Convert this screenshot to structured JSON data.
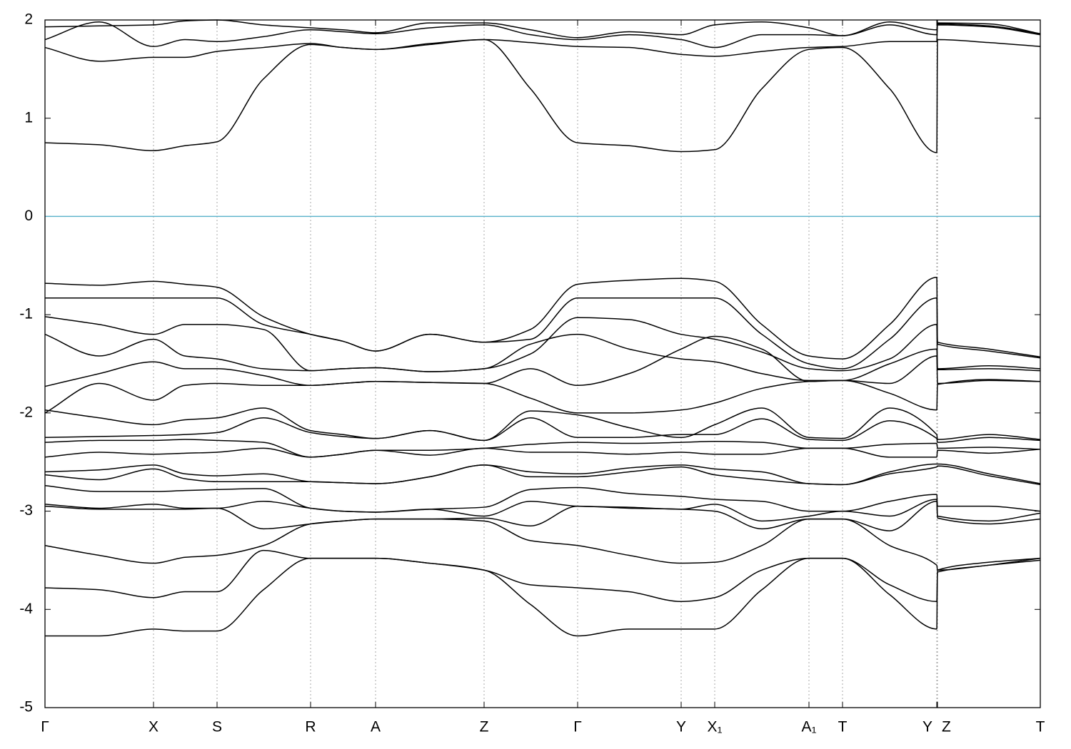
{
  "chart_data": {
    "type": "line",
    "x": [
      0,
      0.76,
      1.52,
      1.96,
      2.41,
      3.06,
      3.72,
      4.17,
      4.63,
      5.39,
      6.15,
      6.8,
      7.46,
      8.18,
      8.91,
      9.38,
      10.04,
      10.7,
      11.17,
      11.83,
      12.49,
      12.5,
      13.22,
      13.94
    ],
    "xlim": [
      0,
      13.94
    ],
    "xticks": [
      {
        "value": 0,
        "label": "Γ"
      },
      {
        "value": 1.52,
        "label": "X"
      },
      {
        "value": 2.41,
        "label": "S"
      },
      {
        "value": 3.72,
        "label": "R"
      },
      {
        "value": 4.63,
        "label": "A"
      },
      {
        "value": 6.15,
        "label": "Z"
      },
      {
        "value": 7.46,
        "label": "Γ"
      },
      {
        "value": 8.91,
        "label": "Y"
      },
      {
        "value": 9.38,
        "label": "X₁"
      },
      {
        "value": 10.7,
        "label": "A₁"
      },
      {
        "value": 11.17,
        "label": "T"
      },
      {
        "value": 12.49,
        "label": "Y"
      },
      {
        "value": 12.5,
        "label": "Z"
      },
      {
        "value": 13.94,
        "label": "T"
      }
    ],
    "ylim": [
      -5,
      2
    ],
    "yticks": [
      -5,
      -4,
      -3,
      -2,
      -1,
      0,
      1,
      2
    ],
    "vertical_grid": true,
    "line_color": "#000000",
    "hline": 0,
    "hline_color": "#5fb4cc",
    "series": [
      {
        "values": [
          0.75,
          0.73,
          0.67,
          0.72,
          0.76,
          1.4,
          1.75,
          1.72,
          1.7,
          1.75,
          1.8,
          1.3,
          0.75,
          0.72,
          0.66,
          0.68,
          1.3,
          1.7,
          1.72,
          1.3,
          0.65,
          1.8,
          1.77,
          1.73
        ]
      },
      {
        "values": [
          1.72,
          1.58,
          1.62,
          1.62,
          1.68,
          1.72,
          1.76,
          1.72,
          1.7,
          1.76,
          1.8,
          1.77,
          1.73,
          1.72,
          1.65,
          1.63,
          1.68,
          1.72,
          1.73,
          1.78,
          1.78,
          1.95,
          1.93,
          1.85
        ]
      },
      {
        "values": [
          1.8,
          1.98,
          1.73,
          1.8,
          1.78,
          1.83,
          1.9,
          1.88,
          1.86,
          1.92,
          1.95,
          1.85,
          1.8,
          1.85,
          1.8,
          1.72,
          1.85,
          1.85,
          1.84,
          1.95,
          1.85,
          1.96,
          1.94,
          1.86
        ]
      },
      {
        "values": [
          1.93,
          1.94,
          1.95,
          1.99,
          2.0,
          1.95,
          1.92,
          1.9,
          1.87,
          1.97,
          1.97,
          1.9,
          1.82,
          1.88,
          1.85,
          1.95,
          1.98,
          1.92,
          1.84,
          1.98,
          1.9,
          1.97,
          1.96,
          1.86
        ]
      },
      {
        "values": [
          -0.68,
          -0.7,
          -0.66,
          -0.69,
          -0.72,
          -1.02,
          -1.2,
          -1.27,
          -1.37,
          -1.2,
          -1.28,
          -1.15,
          -0.69,
          -0.65,
          -0.63,
          -0.66,
          -1.1,
          -1.42,
          -1.45,
          -1.1,
          -0.62,
          -1.28,
          -1.35,
          -1.43
        ]
      },
      {
        "values": [
          -0.83,
          -0.83,
          -0.83,
          -0.83,
          -0.83,
          -1.1,
          -1.2,
          -1.27,
          -1.37,
          -1.2,
          -1.28,
          -1.25,
          -0.83,
          -0.83,
          -0.83,
          -0.83,
          -1.2,
          -1.5,
          -1.55,
          -1.25,
          -0.83,
          -1.3,
          -1.37,
          -1.44
        ]
      },
      {
        "values": [
          -1.02,
          -1.1,
          -1.2,
          -1.1,
          -1.1,
          -1.15,
          -1.57,
          -1.55,
          -1.54,
          -1.58,
          -1.55,
          -1.4,
          -1.03,
          -1.05,
          -1.2,
          -1.25,
          -1.38,
          -1.55,
          -1.57,
          -1.45,
          -1.1,
          -1.55,
          -1.52,
          -1.55
        ]
      },
      {
        "values": [
          -1.2,
          -1.42,
          -1.25,
          -1.42,
          -1.45,
          -1.55,
          -1.57,
          -1.55,
          -1.54,
          -1.58,
          -1.55,
          -1.3,
          -1.2,
          -1.35,
          -1.45,
          -1.48,
          -1.6,
          -1.67,
          -1.67,
          -1.5,
          -1.35,
          -1.56,
          -1.55,
          -1.57
        ]
      },
      {
        "values": [
          -1.73,
          -1.6,
          -1.48,
          -1.55,
          -1.55,
          -1.62,
          -1.72,
          -1.7,
          -1.68,
          -1.69,
          -1.7,
          -1.55,
          -1.72,
          -1.6,
          -1.35,
          -1.22,
          -1.35,
          -1.68,
          -1.67,
          -1.7,
          -1.42,
          -1.7,
          -1.67,
          -1.68
        ]
      },
      {
        "values": [
          -2.0,
          -1.7,
          -1.87,
          -1.72,
          -1.7,
          -1.72,
          -1.72,
          -1.7,
          -1.68,
          -1.69,
          -1.7,
          -1.85,
          -2.0,
          -2.0,
          -1.97,
          -1.9,
          -1.75,
          -1.68,
          -1.67,
          -1.8,
          -1.97,
          -1.71,
          -1.66,
          -1.68
        ]
      },
      {
        "values": [
          -1.97,
          -2.05,
          -2.12,
          -2.07,
          -2.05,
          -1.95,
          -2.18,
          -2.22,
          -2.26,
          -2.18,
          -2.28,
          -1.98,
          -2.02,
          -2.15,
          -2.25,
          -2.12,
          -1.95,
          -2.25,
          -2.26,
          -1.95,
          -2.22,
          -2.27,
          -2.22,
          -2.27
        ]
      },
      {
        "values": [
          -2.25,
          -2.24,
          -2.23,
          -2.22,
          -2.2,
          -2.05,
          -2.2,
          -2.24,
          -2.26,
          -2.18,
          -2.28,
          -2.05,
          -2.25,
          -2.25,
          -2.22,
          -2.22,
          -2.06,
          -2.27,
          -2.28,
          -2.08,
          -2.26,
          -2.3,
          -2.25,
          -2.28
        ]
      },
      {
        "values": [
          -2.3,
          -2.28,
          -2.28,
          -2.27,
          -2.28,
          -2.3,
          -2.45,
          -2.42,
          -2.38,
          -2.38,
          -2.36,
          -2.32,
          -2.3,
          -2.31,
          -2.3,
          -2.29,
          -2.3,
          -2.36,
          -2.36,
          -2.32,
          -2.31,
          -2.36,
          -2.35,
          -2.37
        ]
      },
      {
        "values": [
          -2.45,
          -2.4,
          -2.42,
          -2.41,
          -2.4,
          -2.36,
          -2.45,
          -2.42,
          -2.38,
          -2.43,
          -2.36,
          -2.4,
          -2.4,
          -2.42,
          -2.4,
          -2.42,
          -2.42,
          -2.36,
          -2.36,
          -2.45,
          -2.45,
          -2.38,
          -2.41,
          -2.37
        ]
      },
      {
        "values": [
          -2.6,
          -2.58,
          -2.53,
          -2.62,
          -2.64,
          -2.62,
          -2.7,
          -2.71,
          -2.72,
          -2.65,
          -2.53,
          -2.6,
          -2.62,
          -2.56,
          -2.53,
          -2.57,
          -2.6,
          -2.72,
          -2.73,
          -2.6,
          -2.52,
          -2.52,
          -2.62,
          -2.72
        ]
      },
      {
        "values": [
          -2.63,
          -2.68,
          -2.57,
          -2.67,
          -2.7,
          -2.7,
          -2.7,
          -2.71,
          -2.72,
          -2.65,
          -2.53,
          -2.65,
          -2.65,
          -2.6,
          -2.55,
          -2.63,
          -2.68,
          -2.72,
          -2.73,
          -2.62,
          -2.55,
          -2.54,
          -2.64,
          -2.73
        ]
      },
      {
        "values": [
          -2.74,
          -2.8,
          -2.8,
          -2.79,
          -2.78,
          -2.77,
          -2.97,
          -3.0,
          -3.01,
          -2.98,
          -2.96,
          -2.78,
          -2.76,
          -2.82,
          -2.85,
          -2.88,
          -2.9,
          -3.0,
          -3.0,
          -2.9,
          -2.83,
          -2.95,
          -2.95,
          -3.0
        ]
      },
      {
        "values": [
          -2.93,
          -2.97,
          -2.93,
          -2.97,
          -2.97,
          -2.9,
          -2.97,
          -3.0,
          -3.01,
          -2.98,
          -3.05,
          -2.9,
          -2.95,
          -2.96,
          -2.98,
          -2.93,
          -3.1,
          -3.05,
          -3.0,
          -3.05,
          -2.88,
          -3.05,
          -3.1,
          -3.02
        ]
      },
      {
        "values": [
          -2.95,
          -2.98,
          -2.98,
          -2.98,
          -2.97,
          -3.18,
          -3.13,
          -3.1,
          -3.08,
          -3.08,
          -3.07,
          -3.15,
          -2.95,
          -2.97,
          -2.98,
          -3.0,
          -3.18,
          -3.08,
          -3.08,
          -3.2,
          -2.9,
          -3.07,
          -3.13,
          -3.08
        ]
      },
      {
        "values": [
          -3.35,
          -3.45,
          -3.53,
          -3.47,
          -3.45,
          -3.35,
          -3.13,
          -3.1,
          -3.08,
          -3.08,
          -3.1,
          -3.3,
          -3.35,
          -3.45,
          -3.53,
          -3.52,
          -3.35,
          -3.08,
          -3.08,
          -3.35,
          -3.55,
          -3.6,
          -3.55,
          -3.5
        ]
      },
      {
        "values": [
          -3.78,
          -3.8,
          -3.88,
          -3.82,
          -3.82,
          -3.4,
          -3.48,
          -3.48,
          -3.48,
          -3.53,
          -3.6,
          -3.75,
          -3.78,
          -3.82,
          -3.92,
          -3.88,
          -3.6,
          -3.48,
          -3.48,
          -3.75,
          -3.92,
          -3.62,
          -3.55,
          -3.48
        ]
      },
      {
        "values": [
          -4.27,
          -4.27,
          -4.2,
          -4.22,
          -4.22,
          -3.8,
          -3.48,
          -3.48,
          -3.48,
          -3.53,
          -3.6,
          -3.95,
          -4.27,
          -4.2,
          -4.2,
          -4.2,
          -3.8,
          -3.48,
          -3.48,
          -3.85,
          -4.2,
          -3.6,
          -3.52,
          -3.48
        ]
      }
    ]
  }
}
